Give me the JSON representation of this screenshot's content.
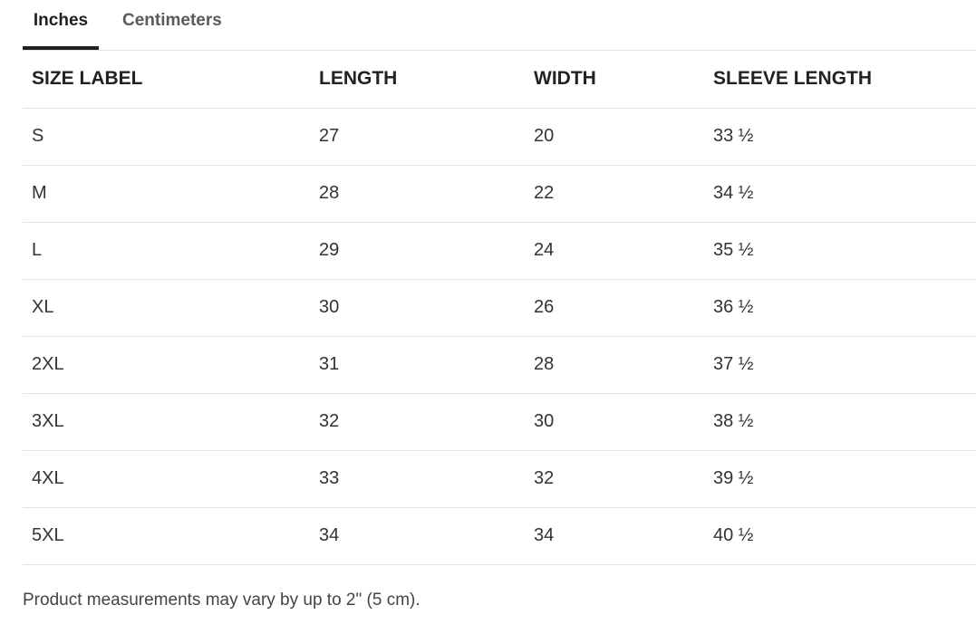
{
  "tabs": [
    {
      "label": "Inches",
      "active": true
    },
    {
      "label": "Centimeters",
      "active": false
    }
  ],
  "table": {
    "headers": [
      "SIZE LABEL",
      "LENGTH",
      "WIDTH",
      "SLEEVE LENGTH"
    ],
    "rows": [
      [
        "S",
        "27",
        "20",
        "33 ½"
      ],
      [
        "M",
        "28",
        "22",
        "34 ½"
      ],
      [
        "L",
        "29",
        "24",
        "35 ½"
      ],
      [
        "XL",
        "30",
        "26",
        "36 ½"
      ],
      [
        "2XL",
        "31",
        "28",
        "37 ½"
      ],
      [
        "3XL",
        "32",
        "30",
        "38 ½"
      ],
      [
        "4XL",
        "33",
        "32",
        "39 ½"
      ],
      [
        "5XL",
        "34",
        "34",
        "40 ½"
      ]
    ]
  },
  "note": "Product measurements may vary by up to 2\" (5 cm).",
  "colors": {
    "active_tab": "#1f1f1f",
    "inactive_tab": "#5a5a5a",
    "divider": "#e2e2e2"
  }
}
